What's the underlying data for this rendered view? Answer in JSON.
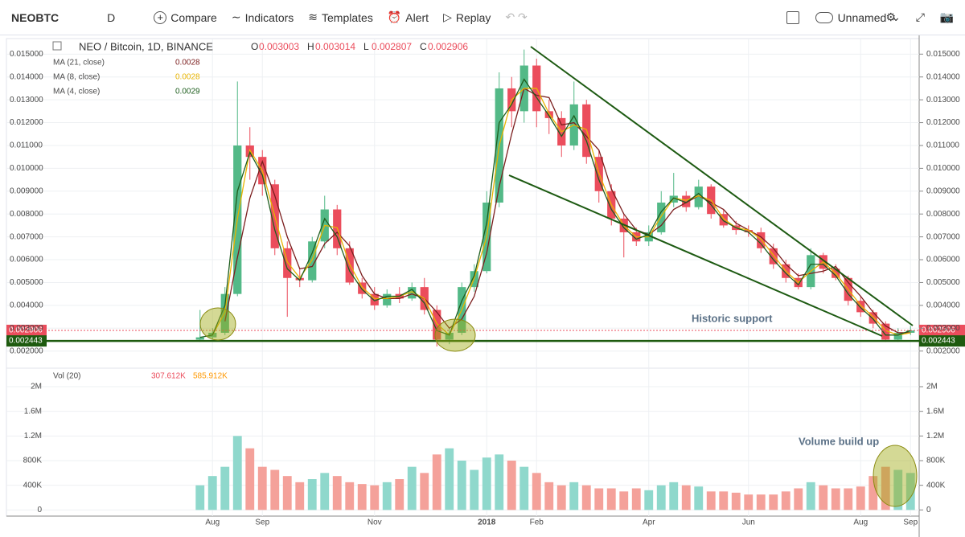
{
  "toolbar": {
    "symbol": "NEOBTC",
    "interval": "D",
    "compare": "Compare",
    "indicators": "Indicators",
    "templates": "Templates",
    "alert": "Alert",
    "replay": "Replay",
    "layout": "Unnamed"
  },
  "chart_data": [
    {
      "type": "candlestick",
      "title": "NEO / Bitcoin, 1D, BINANCE",
      "ohlc": [
        {
          "label": "O",
          "value": 0.003003
        },
        {
          "label": "H",
          "value": 0.003014
        },
        {
          "label": "L",
          "value": 0.002807
        },
        {
          "label": "C",
          "value": 0.002906
        }
      ],
      "open": [
        0.0025,
        0.0026,
        0.0028,
        0.0045,
        0.011,
        0.0105,
        0.0093,
        0.0065,
        0.0052,
        0.0051,
        0.0068,
        0.0082,
        0.0065,
        0.005,
        0.0045,
        0.004,
        0.0045,
        0.0043,
        0.0048,
        0.0038,
        0.0025,
        0.0028,
        0.0048,
        0.0055,
        0.0085,
        0.0135,
        0.0125,
        0.0145,
        0.0125,
        0.0122,
        0.011,
        0.0128,
        0.0105,
        0.009,
        0.0078,
        0.0072,
        0.0068,
        0.0072,
        0.0085,
        0.0088,
        0.0083,
        0.0092,
        0.008,
        0.0075,
        0.0073,
        0.0072,
        0.0065,
        0.0058,
        0.0052,
        0.0048,
        0.0062,
        0.0056,
        0.0052,
        0.0042,
        0.0037,
        0.0032,
        0.0025,
        0.0028
      ],
      "high": [
        0.0038,
        0.003,
        0.0048,
        0.0138,
        0.0118,
        0.0108,
        0.0095,
        0.0068,
        0.0056,
        0.007,
        0.0088,
        0.0084,
        0.0068,
        0.0052,
        0.0048,
        0.0047,
        0.0048,
        0.005,
        0.0052,
        0.004,
        0.003,
        0.005,
        0.0058,
        0.009,
        0.0142,
        0.014,
        0.0152,
        0.0148,
        0.013,
        0.0125,
        0.0138,
        0.013,
        0.0108,
        0.0093,
        0.008,
        0.0074,
        0.0075,
        0.009,
        0.0098,
        0.009,
        0.0095,
        0.0093,
        0.0082,
        0.0077,
        0.0075,
        0.0074,
        0.0067,
        0.006,
        0.0054,
        0.0065,
        0.0063,
        0.0058,
        0.0053,
        0.0044,
        0.0038,
        0.0033,
        0.003,
        0.0031
      ],
      "low": [
        0.0024,
        0.0025,
        0.0027,
        0.0044,
        0.0095,
        0.0088,
        0.0062,
        0.0035,
        0.0048,
        0.005,
        0.0065,
        0.0062,
        0.0049,
        0.0043,
        0.0038,
        0.0039,
        0.0041,
        0.0042,
        0.0036,
        0.0022,
        0.0023,
        0.0027,
        0.0046,
        0.0054,
        0.0083,
        0.0118,
        0.012,
        0.0118,
        0.0115,
        0.0105,
        0.0108,
        0.0102,
        0.0085,
        0.0075,
        0.0061,
        0.0066,
        0.0066,
        0.0071,
        0.0083,
        0.0081,
        0.0082,
        0.0078,
        0.0074,
        0.0071,
        0.007,
        0.0063,
        0.0056,
        0.005,
        0.0047,
        0.0047,
        0.0054,
        0.0051,
        0.004,
        0.0035,
        0.003,
        0.0024,
        0.0024,
        0.0027
      ],
      "close": [
        0.0026,
        0.0028,
        0.0045,
        0.011,
        0.0105,
        0.0093,
        0.0065,
        0.0052,
        0.0051,
        0.0068,
        0.0082,
        0.0065,
        0.005,
        0.0045,
        0.004,
        0.0045,
        0.0043,
        0.0048,
        0.0038,
        0.0025,
        0.0028,
        0.0048,
        0.0055,
        0.0085,
        0.0135,
        0.0125,
        0.0145,
        0.0125,
        0.0122,
        0.011,
        0.0128,
        0.0105,
        0.009,
        0.0078,
        0.0072,
        0.0068,
        0.0072,
        0.0085,
        0.0088,
        0.0083,
        0.0092,
        0.008,
        0.0075,
        0.0073,
        0.0072,
        0.0065,
        0.0058,
        0.0052,
        0.0048,
        0.0062,
        0.0056,
        0.0052,
        0.0042,
        0.0037,
        0.0032,
        0.0025,
        0.0028,
        0.0029
      ],
      "up_color": "#53b987",
      "down_color": "#eb4d5c",
      "series": [
        {
          "name": "MA (21, close)",
          "last_value": 0.0028,
          "color": "#7b1e1e",
          "values": [
            null,
            null,
            0.0033,
            0.0061,
            0.0087,
            0.0103,
            0.0088,
            0.007,
            0.0056,
            0.0057,
            0.0067,
            0.0072,
            0.0066,
            0.0053,
            0.0045,
            0.0043,
            0.0043,
            0.0045,
            0.0043,
            0.0037,
            0.003,
            0.0034,
            0.0044,
            0.0063,
            0.0092,
            0.0115,
            0.0135,
            0.0132,
            0.0131,
            0.0119,
            0.012,
            0.0114,
            0.0108,
            0.0091,
            0.008,
            0.0073,
            0.0071,
            0.0075,
            0.0082,
            0.0085,
            0.0088,
            0.0085,
            0.0082,
            0.0076,
            0.0073,
            0.007,
            0.0065,
            0.0058,
            0.0053,
            0.0054,
            0.0055,
            0.0057,
            0.005,
            0.0044,
            0.0037,
            0.0031,
            0.0028,
            0.0028
          ]
        },
        {
          "name": "MA (8, close)",
          "last_value": 0.0028,
          "color": "#e8b400",
          "values": [
            null,
            0.0027,
            0.0037,
            0.0078,
            0.0108,
            0.0099,
            0.0079,
            0.0059,
            0.0052,
            0.006,
            0.0075,
            0.0074,
            0.0058,
            0.0048,
            0.0043,
            0.0043,
            0.0044,
            0.0046,
            0.0043,
            0.0032,
            0.0027,
            0.0038,
            0.0052,
            0.007,
            0.011,
            0.013,
            0.0135,
            0.0135,
            0.0124,
            0.0116,
            0.0119,
            0.0117,
            0.0098,
            0.0084,
            0.0075,
            0.007,
            0.007,
            0.0079,
            0.0087,
            0.0086,
            0.0088,
            0.0086,
            0.0078,
            0.0074,
            0.0073,
            0.0069,
            0.0062,
            0.0055,
            0.005,
            0.0055,
            0.0059,
            0.0054,
            0.0047,
            0.004,
            0.0035,
            0.0029,
            0.0027,
            0.0028
          ]
        },
        {
          "name": "MA (4, close)",
          "last_value": 0.0029,
          "color": "#1e5e1e",
          "values": [
            0.0026,
            0.0027,
            0.004,
            0.009,
            0.0107,
            0.0097,
            0.0073,
            0.0056,
            0.0051,
            0.0063,
            0.0078,
            0.007,
            0.0055,
            0.0047,
            0.0042,
            0.0044,
            0.0044,
            0.0047,
            0.0041,
            0.0029,
            0.0027,
            0.0042,
            0.0053,
            0.0076,
            0.012,
            0.0128,
            0.0139,
            0.0131,
            0.0123,
            0.0114,
            0.0123,
            0.0112,
            0.0095,
            0.0082,
            0.0074,
            0.0069,
            0.0071,
            0.0081,
            0.0087,
            0.0085,
            0.0089,
            0.0084,
            0.0077,
            0.0074,
            0.0072,
            0.0067,
            0.006,
            0.0054,
            0.0049,
            0.0058,
            0.0058,
            0.0053,
            0.0045,
            0.0039,
            0.0034,
            0.0027,
            0.0027,
            0.0029
          ]
        }
      ],
      "price_lines": [
        {
          "value": 0.002906,
          "color": "#eb4d5c"
        },
        {
          "value": 0.002443,
          "color": "#1e5b0f"
        }
      ],
      "annotation": "Historic support",
      "ylim": [
        0.00125,
        0.01568
      ],
      "yticks": [
        {
          "value": 0.002,
          "label": "0.002000"
        },
        {
          "value": 0.003,
          "label": "0.003000"
        },
        {
          "value": 0.004,
          "label": "0.004000"
        },
        {
          "value": 0.005,
          "label": "0.005000"
        },
        {
          "value": 0.006,
          "label": "0.006000"
        },
        {
          "value": 0.007,
          "label": "0.007000"
        },
        {
          "value": 0.008,
          "label": "0.008000"
        },
        {
          "value": 0.009,
          "label": "0.009000"
        },
        {
          "value": 0.01,
          "label": "0.010000"
        },
        {
          "value": 0.011,
          "label": "0.011000"
        },
        {
          "value": 0.012,
          "label": "0.012000"
        },
        {
          "value": 0.013,
          "label": "0.013000"
        },
        {
          "value": 0.014,
          "label": "0.014000"
        },
        {
          "value": 0.015,
          "label": "0.015000"
        }
      ],
      "grid": true
    },
    {
      "type": "bar",
      "title": "Vol (20)",
      "legend_values": [
        "307.612K",
        "585.912K"
      ],
      "categories": [
        null,
        "Aug",
        null,
        null,
        null,
        "Sep",
        null,
        null,
        null,
        null,
        null,
        null,
        null,
        null,
        "Nov",
        null,
        null,
        null,
        null,
        null,
        null,
        null,
        null,
        "2018",
        null,
        null,
        null,
        "Feb",
        null,
        null,
        null,
        null,
        null,
        null,
        null,
        null,
        "Apr",
        null,
        null,
        null,
        null,
        null,
        null,
        null,
        "Jun",
        null,
        null,
        null,
        null,
        null,
        null,
        null,
        null,
        "Aug",
        null,
        null,
        null,
        "Sep"
      ],
      "values": [
        400000,
        550000,
        700000,
        1200000,
        1000000,
        700000,
        650000,
        550000,
        450000,
        500000,
        600000,
        550000,
        450000,
        420000,
        400000,
        450000,
        500000,
        700000,
        600000,
        900000,
        1000000,
        800000,
        650000,
        850000,
        900000,
        800000,
        700000,
        600000,
        450000,
        400000,
        450000,
        400000,
        350000,
        350000,
        300000,
        350000,
        320000,
        400000,
        450000,
        400000,
        380000,
        300000,
        300000,
        280000,
        250000,
        250000,
        250000,
        300000,
        350000,
        450000,
        400000,
        350000,
        350000,
        380000,
        550000,
        700000,
        650000,
        600000
      ],
      "annotation": "Volume build up",
      "ylim": [
        -100000,
        2300000
      ],
      "yticks": [
        0,
        {
          "value": 400000,
          "label": "400K"
        },
        {
          "value": 800000,
          "label": "800K"
        },
        {
          "value": 1200000,
          "label": "1.2M"
        },
        {
          "value": 1600000,
          "label": "1.6M"
        },
        {
          "value": 2000000,
          "label": "2M"
        }
      ],
      "grid": true
    }
  ]
}
